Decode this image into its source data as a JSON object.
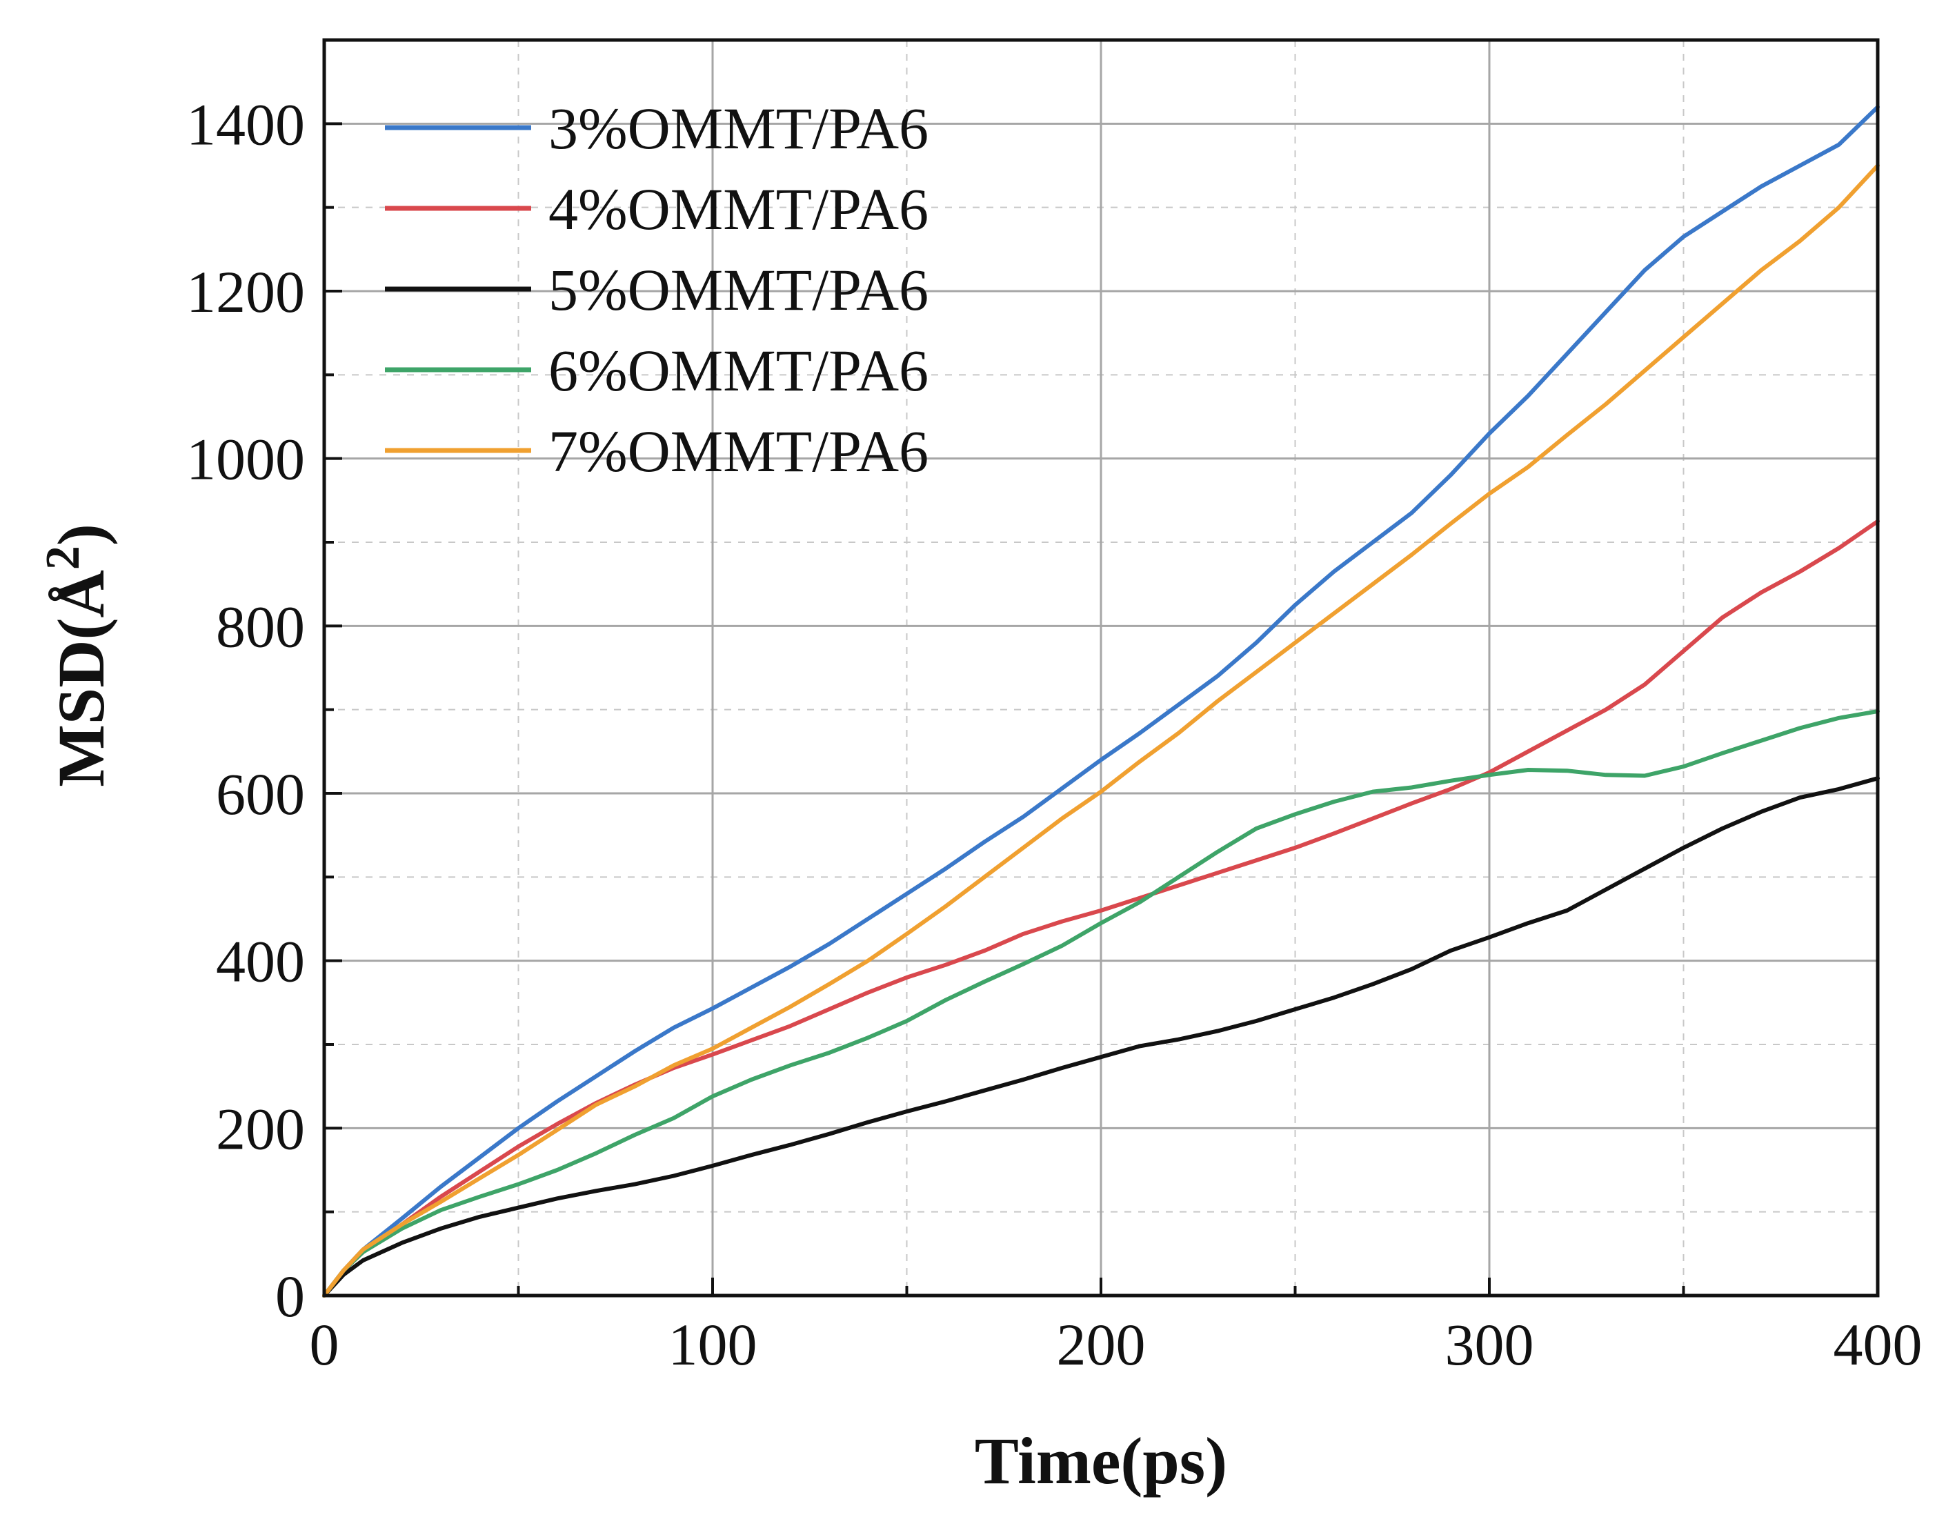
{
  "chart_data": {
    "type": "line",
    "title": "",
    "xlabel": "Time(ps)",
    "ylabel": "MSD(Å",
    "ylabel_superscript": "2",
    "ylabel_close": ")",
    "xlim": [
      0,
      400
    ],
    "ylim": [
      0,
      1500
    ],
    "xticks": [
      0,
      100,
      200,
      300,
      400
    ],
    "yticks": [
      0,
      200,
      400,
      600,
      800,
      1000,
      1200,
      1400
    ],
    "xtick_labels": [
      "0",
      "100",
      "200",
      "300",
      "400"
    ],
    "ytick_labels": [
      "0",
      "200",
      "400",
      "600",
      "800",
      "1000",
      "1200",
      "1400"
    ],
    "x_minor_step": 50,
    "y_minor_step": 100,
    "grid": true,
    "legend_position": "top-left",
    "series": [
      {
        "name": "3%OMMT/PA6",
        "color": "#3a78c9",
        "x": [
          0,
          5,
          10,
          20,
          30,
          40,
          50,
          60,
          70,
          80,
          90,
          100,
          110,
          120,
          130,
          140,
          150,
          160,
          170,
          180,
          190,
          200,
          210,
          220,
          230,
          240,
          250,
          260,
          270,
          280,
          290,
          300,
          310,
          320,
          330,
          340,
          350,
          360,
          370,
          380,
          390,
          400
        ],
        "y": [
          0,
          30,
          55,
          92,
          130,
          165,
          200,
          232,
          262,
          292,
          320,
          343,
          368,
          393,
          420,
          450,
          480,
          510,
          542,
          572,
          606,
          640,
          672,
          706,
          740,
          780,
          825,
          865,
          900,
          935,
          980,
          1030,
          1075,
          1125,
          1175,
          1225,
          1265,
          1295,
          1325,
          1350,
          1375,
          1420
        ]
      },
      {
        "name": "4%OMMT/PA6",
        "color": "#d9484d",
        "x": [
          0,
          5,
          10,
          20,
          30,
          40,
          50,
          60,
          70,
          80,
          90,
          100,
          110,
          120,
          130,
          140,
          150,
          160,
          170,
          180,
          190,
          200,
          210,
          220,
          230,
          240,
          250,
          260,
          270,
          280,
          290,
          300,
          310,
          320,
          330,
          340,
          350,
          360,
          370,
          380,
          390,
          400
        ],
        "y": [
          0,
          30,
          52,
          85,
          118,
          148,
          178,
          205,
          230,
          252,
          272,
          288,
          305,
          322,
          342,
          362,
          380,
          395,
          412,
          432,
          447,
          460,
          475,
          490,
          505,
          520,
          535,
          552,
          570,
          588,
          605,
          625,
          650,
          675,
          700,
          730,
          770,
          810,
          840,
          865,
          893,
          925
        ]
      },
      {
        "name": "5%OMMT/PA6",
        "color": "#111111",
        "x": [
          0,
          5,
          10,
          20,
          30,
          40,
          50,
          60,
          70,
          80,
          90,
          100,
          110,
          120,
          130,
          140,
          150,
          160,
          170,
          180,
          190,
          200,
          210,
          220,
          230,
          240,
          250,
          260,
          270,
          280,
          290,
          300,
          310,
          320,
          330,
          340,
          350,
          360,
          370,
          380,
          390,
          400
        ],
        "y": [
          0,
          25,
          42,
          63,
          80,
          94,
          105,
          116,
          125,
          133,
          143,
          155,
          168,
          180,
          193,
          207,
          220,
          232,
          245,
          258,
          272,
          285,
          298,
          306,
          316,
          328,
          342,
          356,
          372,
          390,
          412,
          428,
          445,
          460,
          485,
          510,
          535,
          558,
          578,
          595,
          605,
          618
        ]
      },
      {
        "name": "6%OMMT/PA6",
        "color": "#3ea468",
        "x": [
          0,
          5,
          10,
          20,
          30,
          40,
          50,
          60,
          70,
          80,
          90,
          100,
          110,
          120,
          130,
          140,
          150,
          160,
          170,
          180,
          190,
          200,
          210,
          220,
          230,
          240,
          250,
          260,
          270,
          280,
          290,
          300,
          310,
          320,
          330,
          340,
          350,
          360,
          370,
          380,
          390,
          400
        ],
        "y": [
          0,
          30,
          52,
          80,
          102,
          118,
          133,
          150,
          170,
          192,
          212,
          238,
          258,
          275,
          290,
          308,
          328,
          353,
          375,
          396,
          418,
          445,
          470,
          500,
          530,
          558,
          575,
          590,
          602,
          607,
          615,
          622,
          628,
          627,
          622,
          621,
          632,
          648,
          663,
          678,
          690,
          698
        ]
      },
      {
        "name": "7%OMMT/PA6",
        "color": "#f0a030",
        "x": [
          0,
          5,
          10,
          20,
          30,
          40,
          50,
          60,
          70,
          80,
          90,
          100,
          110,
          120,
          130,
          140,
          150,
          160,
          170,
          180,
          190,
          200,
          210,
          220,
          230,
          240,
          250,
          260,
          270,
          280,
          290,
          300,
          310,
          320,
          330,
          340,
          350,
          360,
          370,
          380,
          390,
          400
        ],
        "y": [
          0,
          30,
          55,
          85,
          112,
          140,
          168,
          198,
          228,
          250,
          275,
          295,
          320,
          345,
          372,
          400,
          432,
          465,
          500,
          535,
          570,
          602,
          638,
          672,
          710,
          745,
          780,
          815,
          850,
          885,
          922,
          958,
          990,
          1028,
          1065,
          1105,
          1145,
          1185,
          1225,
          1260,
          1300,
          1350
        ]
      }
    ]
  }
}
